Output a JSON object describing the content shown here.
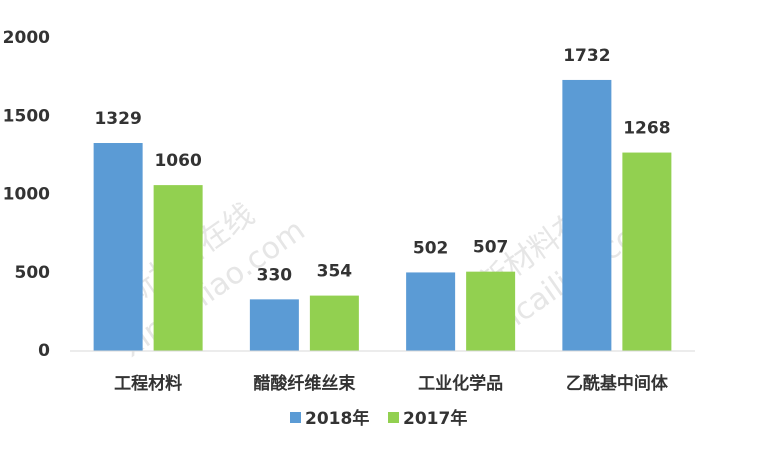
{
  "chart_data": {
    "type": "bar",
    "categories": [
      "工程材料",
      "醋酸纤维丝束",
      "工业化学品",
      "乙酰基中间体"
    ],
    "series": [
      {
        "name": "2018年",
        "color": "#5b9bd5",
        "values": [
          1329,
          330,
          502,
          1732
        ]
      },
      {
        "name": "2017年",
        "color": "#92d050",
        "values": [
          1060,
          354,
          507,
          1268
        ]
      }
    ],
    "ylim": [
      0,
      2000
    ],
    "yticks": [
      0,
      500,
      1000,
      1500,
      2000
    ],
    "legend": "bottom",
    "watermark": [
      "新材料在线",
      "xincailiao.com"
    ]
  }
}
